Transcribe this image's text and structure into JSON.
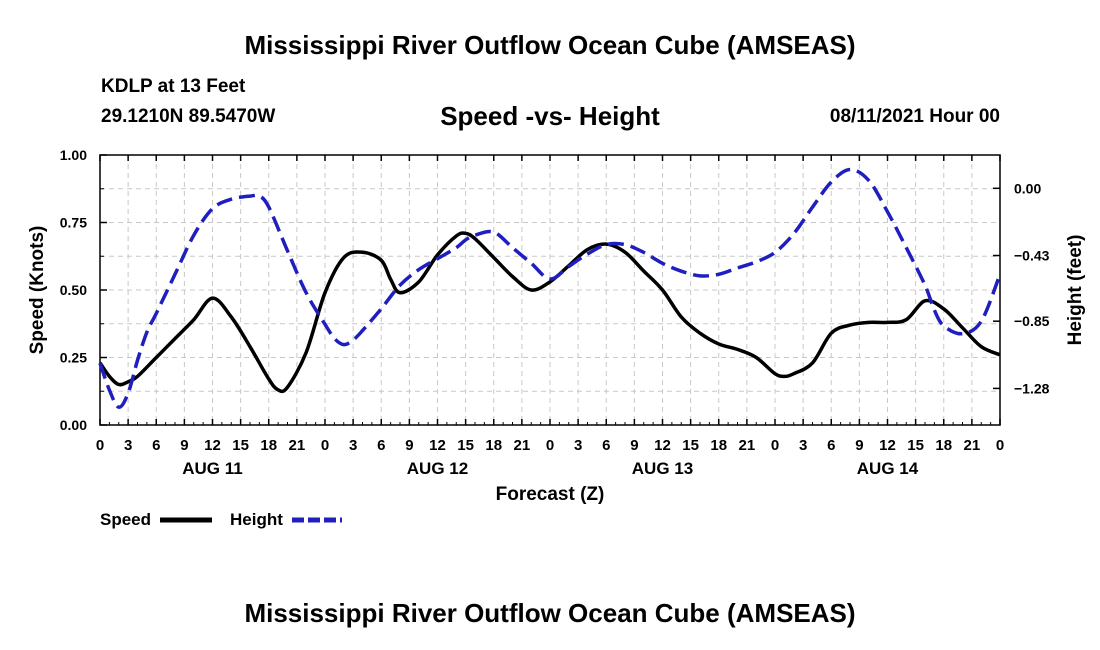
{
  "title_top": "Mississippi River Outflow Ocean Cube (AMSEAS)",
  "title_bottom": "Mississippi River Outflow Ocean Cube (AMSEAS)",
  "station": "KDLP at 13 Feet",
  "coords": "29.1210N  89.5470W",
  "date_label": "08/11/2021 Hour 00",
  "colors": {
    "speed": "#000000",
    "height": "#1f1fbf",
    "grid": "#c8c8c8"
  },
  "chart_data": {
    "type": "line",
    "title": "Speed -vs- Height",
    "xlabel": "Forecast (Z)",
    "ylabel": "Speed (Knots)",
    "y2label": "Height (feet)",
    "xlim": [
      0,
      96
    ],
    "ylim": [
      0,
      1
    ],
    "y2lim": [
      -1.514,
      0.213
    ],
    "x_tick_labels": [
      "0",
      "3",
      "6",
      "9",
      "12",
      "15",
      "18",
      "21",
      "0",
      "3",
      "6",
      "9",
      "12",
      "15",
      "18",
      "21",
      "0",
      "3",
      "6",
      "9",
      "12",
      "15",
      "18",
      "21",
      "0",
      "3",
      "6",
      "9",
      "12",
      "15",
      "18",
      "21",
      "0"
    ],
    "day_labels": [
      {
        "label": "AUG 11",
        "x": 12
      },
      {
        "label": "AUG 12",
        "x": 36
      },
      {
        "label": "AUG 13",
        "x": 60
      },
      {
        "label": "AUG 14",
        "x": 84
      }
    ],
    "y_ticks": [
      0.0,
      0.25,
      0.5,
      0.75,
      1.0
    ],
    "y_tick_labels": [
      "0.00",
      "0.25",
      "0.50",
      "0.75",
      "1.00"
    ],
    "y2_ticks": [
      0.0,
      -0.43,
      -0.85,
      -1.28
    ],
    "y2_tick_labels": [
      "0.00",
      "−0.43",
      "−0.85",
      "−1.28"
    ],
    "series": [
      {
        "name": "Speed",
        "axis": "left",
        "x": [
          0,
          1,
          2,
          3,
          4,
          6,
          8,
          10,
          12,
          14,
          16,
          18,
          19,
          20,
          22,
          24,
          26,
          28,
          30,
          31,
          32,
          34,
          36,
          38,
          39,
          40,
          42,
          44,
          46,
          48,
          50,
          52,
          54,
          56,
          58,
          60,
          62,
          64,
          66,
          68,
          70,
          72,
          73,
          74,
          76,
          78,
          80,
          82,
          84,
          86,
          88,
          90,
          92,
          94,
          96
        ],
        "values": [
          0.23,
          0.18,
          0.15,
          0.16,
          0.18,
          0.25,
          0.32,
          0.39,
          0.47,
          0.4,
          0.29,
          0.17,
          0.13,
          0.14,
          0.27,
          0.49,
          0.62,
          0.64,
          0.61,
          0.54,
          0.49,
          0.53,
          0.63,
          0.7,
          0.71,
          0.69,
          0.62,
          0.55,
          0.5,
          0.53,
          0.59,
          0.65,
          0.67,
          0.64,
          0.57,
          0.5,
          0.4,
          0.34,
          0.3,
          0.28,
          0.25,
          0.19,
          0.18,
          0.19,
          0.23,
          0.34,
          0.37,
          0.38,
          0.38,
          0.39,
          0.46,
          0.43,
          0.36,
          0.29,
          0.26
        ]
      },
      {
        "name": "Height",
        "axis": "right",
        "dash": true,
        "x": [
          0,
          1,
          2,
          3,
          4,
          5,
          6,
          8,
          10,
          12,
          14,
          16,
          17,
          18,
          20,
          22,
          24,
          25,
          26,
          27,
          28,
          30,
          32,
          34,
          36,
          38,
          39,
          40,
          42,
          44,
          46,
          48,
          50,
          52,
          54,
          56,
          58,
          60,
          62,
          64,
          66,
          68,
          70,
          72,
          74,
          76,
          78,
          80,
          82,
          84,
          86,
          88,
          89,
          90,
          92,
          94,
          96
        ],
        "values": [
          -1.12,
          -1.29,
          -1.4,
          -1.31,
          -1.1,
          -0.92,
          -0.8,
          -0.55,
          -0.3,
          -0.13,
          -0.07,
          -0.05,
          -0.05,
          -0.12,
          -0.4,
          -0.67,
          -0.87,
          -0.96,
          -1.0,
          -0.97,
          -0.91,
          -0.77,
          -0.62,
          -0.52,
          -0.45,
          -0.38,
          -0.33,
          -0.3,
          -0.28,
          -0.38,
          -0.48,
          -0.58,
          -0.5,
          -0.42,
          -0.36,
          -0.36,
          -0.41,
          -0.48,
          -0.53,
          -0.56,
          -0.55,
          -0.51,
          -0.47,
          -0.41,
          -0.29,
          -0.12,
          0.04,
          0.12,
          0.05,
          -0.15,
          -0.38,
          -0.62,
          -0.78,
          -0.88,
          -0.93,
          -0.85,
          -0.55
        ]
      }
    ],
    "legend": [
      "Speed",
      "Height"
    ],
    "grid": true
  }
}
